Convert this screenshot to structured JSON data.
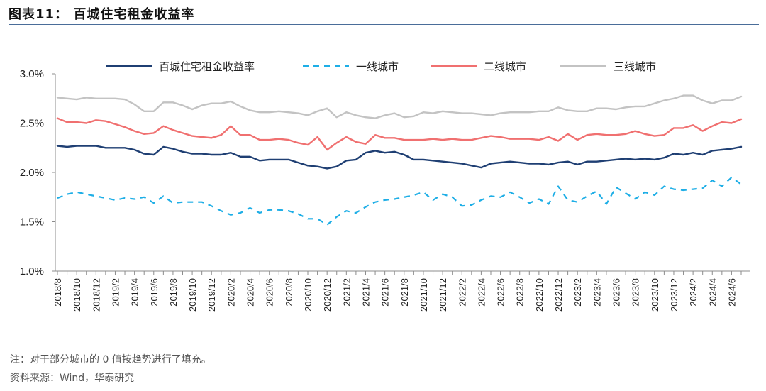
{
  "header": {
    "title": "图表11：   百城住宅租金收益率"
  },
  "footer": {
    "note": "注：对于部分城市的 0 值按趋势进行了填充。",
    "source": "资料来源：Wind，华泰研究"
  },
  "chart_data": {
    "type": "line",
    "title": "",
    "xlabel": "",
    "ylabel": "",
    "ylim": [
      1.0,
      3.0
    ],
    "yticks": [
      "1.0%",
      "1.5%",
      "2.0%",
      "2.5%",
      "3.0%"
    ],
    "ytick_values": [
      1.0,
      1.5,
      2.0,
      2.5,
      3.0
    ],
    "legend_position": "top",
    "x_start": "2018/8",
    "x_labels": [
      "2018/8",
      "2018/10",
      "2018/12",
      "2019/2",
      "2019/4",
      "2019/6",
      "2019/8",
      "2019/10",
      "2019/12",
      "2020/2",
      "2020/4",
      "2020/6",
      "2020/8",
      "2020/10",
      "2020/12",
      "2021/2",
      "2021/4",
      "2021/6",
      "2021/8",
      "2021/10",
      "2021/12",
      "2022/2",
      "2022/4",
      "2022/6",
      "2022/8",
      "2022/10",
      "2022/12",
      "2023/2",
      "2023/4",
      "2023/6",
      "2023/8",
      "2023/10",
      "2023/12",
      "2024/2",
      "2024/4",
      "2024/6"
    ],
    "x": [
      "2018/8",
      "2018/9",
      "2018/10",
      "2018/11",
      "2018/12",
      "2019/1",
      "2019/2",
      "2019/3",
      "2019/4",
      "2019/5",
      "2019/6",
      "2019/7",
      "2019/8",
      "2019/9",
      "2019/10",
      "2019/11",
      "2019/12",
      "2020/1",
      "2020/2",
      "2020/3",
      "2020/4",
      "2020/5",
      "2020/6",
      "2020/7",
      "2020/8",
      "2020/9",
      "2020/10",
      "2020/11",
      "2020/12",
      "2021/1",
      "2021/2",
      "2021/3",
      "2021/4",
      "2021/5",
      "2021/6",
      "2021/7",
      "2021/8",
      "2021/9",
      "2021/10",
      "2021/11",
      "2021/12",
      "2022/1",
      "2022/2",
      "2022/3",
      "2022/4",
      "2022/5",
      "2022/6",
      "2022/7",
      "2022/8",
      "2022/9",
      "2022/10",
      "2022/11",
      "2022/12",
      "2023/1",
      "2023/2",
      "2023/3",
      "2023/4",
      "2023/5",
      "2023/6",
      "2023/7",
      "2023/8",
      "2023/9",
      "2023/10",
      "2023/11",
      "2023/12",
      "2024/1",
      "2024/2",
      "2024/3",
      "2024/4",
      "2024/5",
      "2024/6",
      "2024/7"
    ],
    "series": [
      {
        "name": "百城住宅租金收益率",
        "color": "#1f3f73",
        "dash": "solid",
        "values": [
          2.27,
          2.26,
          2.27,
          2.27,
          2.27,
          2.25,
          2.25,
          2.25,
          2.23,
          2.19,
          2.18,
          2.26,
          2.24,
          2.21,
          2.19,
          2.19,
          2.18,
          2.18,
          2.2,
          2.16,
          2.16,
          2.12,
          2.13,
          2.13,
          2.13,
          2.1,
          2.07,
          2.06,
          2.04,
          2.06,
          2.12,
          2.13,
          2.2,
          2.22,
          2.2,
          2.21,
          2.18,
          2.13,
          2.13,
          2.12,
          2.11,
          2.1,
          2.09,
          2.07,
          2.05,
          2.09,
          2.1,
          2.11,
          2.1,
          2.09,
          2.09,
          2.08,
          2.1,
          2.11,
          2.08,
          2.11,
          2.11,
          2.12,
          2.13,
          2.14,
          2.13,
          2.14,
          2.13,
          2.15,
          2.19,
          2.18,
          2.2,
          2.18,
          2.22,
          2.23,
          2.24,
          2.26
        ]
      },
      {
        "name": "一线城市",
        "color": "#1eaee6",
        "dash": "dashed",
        "values": [
          1.74,
          1.78,
          1.8,
          1.78,
          1.76,
          1.74,
          1.72,
          1.74,
          1.73,
          1.75,
          1.69,
          1.76,
          1.69,
          1.7,
          1.7,
          1.7,
          1.66,
          1.61,
          1.57,
          1.59,
          1.64,
          1.59,
          1.62,
          1.62,
          1.61,
          1.58,
          1.53,
          1.53,
          1.47,
          1.55,
          1.61,
          1.59,
          1.65,
          1.7,
          1.72,
          1.73,
          1.75,
          1.77,
          1.8,
          1.72,
          1.78,
          1.75,
          1.66,
          1.67,
          1.72,
          1.76,
          1.75,
          1.8,
          1.75,
          1.69,
          1.73,
          1.68,
          1.86,
          1.72,
          1.7,
          1.76,
          1.81,
          1.68,
          1.85,
          1.79,
          1.73,
          1.8,
          1.77,
          1.86,
          1.83,
          1.82,
          1.83,
          1.84,
          1.92,
          1.86,
          1.95,
          1.88
        ]
      },
      {
        "name": "二线城市",
        "color": "#f07070",
        "dash": "solid",
        "values": [
          2.55,
          2.51,
          2.51,
          2.5,
          2.53,
          2.52,
          2.49,
          2.46,
          2.42,
          2.39,
          2.4,
          2.47,
          2.43,
          2.4,
          2.37,
          2.36,
          2.35,
          2.38,
          2.47,
          2.38,
          2.38,
          2.33,
          2.33,
          2.34,
          2.33,
          2.3,
          2.28,
          2.36,
          2.23,
          2.3,
          2.36,
          2.31,
          2.29,
          2.38,
          2.35,
          2.35,
          2.33,
          2.33,
          2.33,
          2.34,
          2.33,
          2.34,
          2.33,
          2.33,
          2.35,
          2.37,
          2.36,
          2.34,
          2.34,
          2.34,
          2.33,
          2.36,
          2.32,
          2.39,
          2.33,
          2.38,
          2.39,
          2.38,
          2.38,
          2.39,
          2.42,
          2.39,
          2.37,
          2.38,
          2.45,
          2.45,
          2.48,
          2.42,
          2.47,
          2.51,
          2.5,
          2.54
        ]
      },
      {
        "name": "三线城市",
        "color": "#c3c3c3",
        "dash": "solid",
        "values": [
          2.76,
          2.75,
          2.74,
          2.76,
          2.75,
          2.75,
          2.75,
          2.74,
          2.69,
          2.62,
          2.62,
          2.71,
          2.71,
          2.68,
          2.64,
          2.68,
          2.7,
          2.7,
          2.72,
          2.67,
          2.63,
          2.61,
          2.61,
          2.62,
          2.61,
          2.6,
          2.58,
          2.62,
          2.65,
          2.56,
          2.61,
          2.58,
          2.56,
          2.55,
          2.58,
          2.6,
          2.56,
          2.57,
          2.61,
          2.6,
          2.62,
          2.61,
          2.6,
          2.6,
          2.59,
          2.58,
          2.6,
          2.61,
          2.61,
          2.61,
          2.62,
          2.62,
          2.66,
          2.63,
          2.62,
          2.62,
          2.65,
          2.65,
          2.64,
          2.66,
          2.67,
          2.67,
          2.7,
          2.73,
          2.75,
          2.78,
          2.78,
          2.73,
          2.7,
          2.73,
          2.73,
          2.77
        ]
      }
    ]
  }
}
